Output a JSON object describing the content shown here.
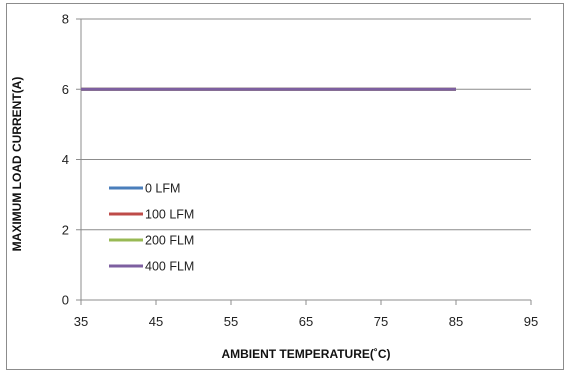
{
  "chart_data": {
    "type": "line",
    "title": "",
    "xlabel": "AMBIENT TEMPERATURE(˚C)",
    "ylabel": "MAXIMUM LOAD CURRENT(A)",
    "xlim": [
      35,
      95
    ],
    "ylim": [
      0,
      8
    ],
    "xticks": [
      35,
      45,
      55,
      65,
      75,
      85,
      95
    ],
    "yticks": [
      0,
      2,
      4,
      6,
      8
    ],
    "grid": "horizontal",
    "legend_position": "lower-left",
    "series": [
      {
        "name": "0 LFM",
        "color": "#4a7ebb",
        "x": [
          35,
          85
        ],
        "y": [
          6,
          6
        ]
      },
      {
        "name": "100 LFM",
        "color": "#be4b48",
        "x": [
          35,
          85
        ],
        "y": [
          6,
          6
        ]
      },
      {
        "name": "200 FLM",
        "color": "#98b954",
        "x": [
          35,
          85
        ],
        "y": [
          6,
          6
        ]
      },
      {
        "name": "400 FLM",
        "color": "#7d5fa0",
        "x": [
          35,
          85
        ],
        "y": [
          6,
          6
        ]
      }
    ]
  }
}
